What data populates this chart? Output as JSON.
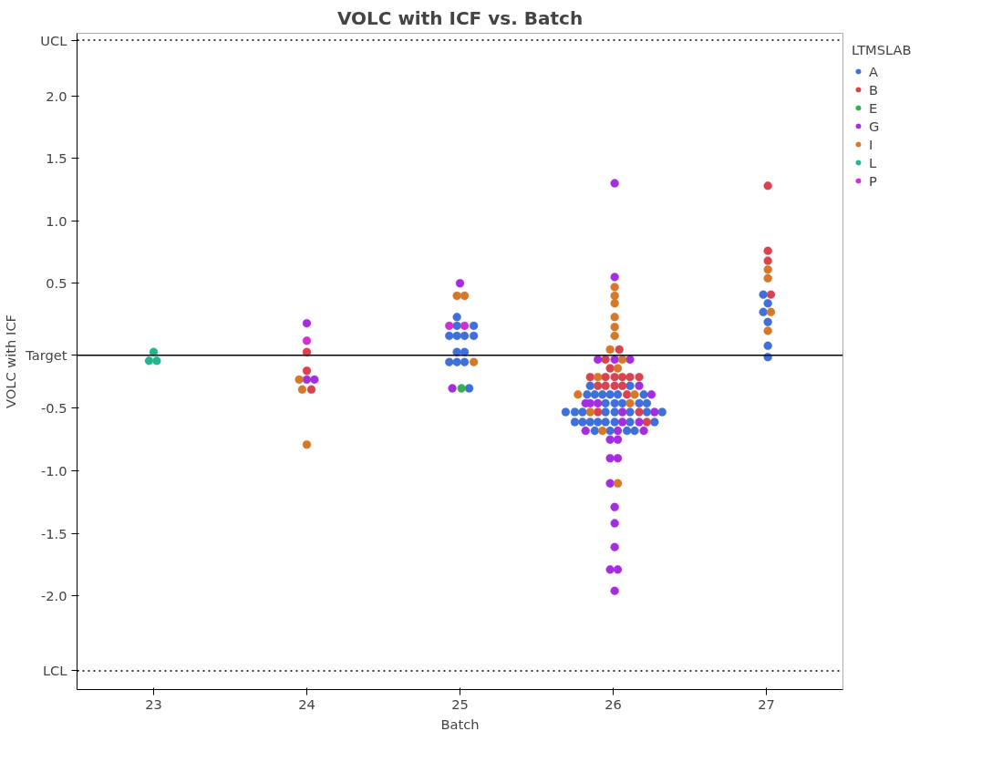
{
  "chart_data": {
    "type": "scatter",
    "title": "VOLC with ICF vs. Batch",
    "xlabel": "Batch",
    "ylabel": "VOLC with ICF",
    "legend_title": "LTMSLAB",
    "xlim": [
      22.5,
      27.5
    ],
    "xticks": [
      23,
      24,
      25,
      26,
      27
    ],
    "ylim": [
      -2.75,
      2.5
    ],
    "yticks": [
      {
        "value": 2.0,
        "label": "2.0"
      },
      {
        "value": 1.5,
        "label": "1.5"
      },
      {
        "value": 1.0,
        "label": "1.0"
      },
      {
        "value": 0.5,
        "label": "0.5"
      },
      {
        "value": -0.5,
        "label": "-0.5"
      },
      {
        "value": -1.0,
        "label": "-1.0"
      },
      {
        "value": -1.5,
        "label": "-1.5"
      },
      {
        "value": -2.0,
        "label": "-2.0"
      }
    ],
    "ref_lines": [
      {
        "axis": "y",
        "value": 2.445,
        "label": "UCL",
        "line_style": "dotted",
        "color": "#000000"
      },
      {
        "axis": "y",
        "value": -0.075,
        "label": "Target",
        "line_style": "solid",
        "color": "#000000"
      },
      {
        "axis": "y",
        "value": -2.6,
        "label": "LCL",
        "line_style": "dotted",
        "color": "#000000"
      }
    ],
    "grid": false,
    "legend": "right",
    "marker": "circle",
    "series": [
      {
        "name": "A",
        "color": "#3f6fd8",
        "x": [
          24.98,
          24.98,
          25.09,
          24.93,
          24.98,
          25.03,
          25.09,
          24.98,
          25.03,
          24.93,
          24.98,
          25.03,
          25.06,
          26.98,
          27.01,
          26.98,
          27.01,
          27.01,
          27.01,
          25.85,
          26.11,
          25.83,
          25.88,
          25.93,
          25.98,
          26.03,
          26.2,
          25.95,
          26.01,
          26.06,
          26.17,
          26.22,
          25.69,
          25.75,
          25.8,
          25.95,
          26.01,
          26.11,
          26.22,
          26.32,
          25.75,
          25.8,
          25.85,
          25.9,
          25.95,
          26.01,
          26.11,
          26.27,
          25.88,
          25.98,
          26.09,
          26.14
        ],
        "values": [
          0.23,
          0.16,
          0.16,
          0.08,
          0.08,
          0.08,
          0.08,
          -0.05,
          -0.05,
          -0.13,
          -0.13,
          -0.13,
          -0.34,
          0.41,
          0.34,
          0.27,
          0.19,
          0.0,
          -0.09,
          -0.32,
          -0.32,
          -0.39,
          -0.39,
          -0.39,
          -0.39,
          -0.39,
          -0.39,
          -0.46,
          -0.46,
          -0.46,
          -0.46,
          -0.46,
          -0.53,
          -0.53,
          -0.53,
          -0.53,
          -0.53,
          -0.53,
          -0.53,
          -0.53,
          -0.61,
          -0.61,
          -0.61,
          -0.61,
          -0.61,
          -0.61,
          -0.61,
          -0.61,
          -0.68,
          -0.68,
          -0.68,
          -0.68
        ]
      },
      {
        "name": "B",
        "color": "#d9434f",
        "x": [
          24.0,
          24.0,
          24.03,
          27.01,
          27.01,
          27.01,
          27.03,
          26.04,
          25.95,
          25.98,
          25.85,
          25.95,
          26.01,
          26.06,
          26.11,
          26.17,
          25.9,
          25.95,
          26.01,
          26.06,
          26.09,
          25.9,
          26.17,
          26.22
        ],
        "values": [
          -0.05,
          -0.2,
          -0.35,
          1.28,
          0.76,
          0.68,
          0.41,
          -0.03,
          -0.11,
          -0.18,
          -0.25,
          -0.25,
          -0.25,
          -0.25,
          -0.25,
          -0.25,
          -0.32,
          -0.32,
          -0.32,
          -0.32,
          -0.39,
          -0.53,
          -0.53,
          -0.61
        ]
      },
      {
        "name": "E",
        "color": "#37b04a",
        "x": [
          25.01
        ],
        "values": [
          -0.34
        ]
      },
      {
        "name": "G",
        "color": "#a32ee0",
        "x": [
          24.0,
          24.0,
          24.05,
          25.0,
          24.95,
          26.01,
          26.01,
          25.9,
          26.01,
          26.11,
          26.17,
          26.25,
          25.82,
          25.85,
          25.9,
          26.06,
          26.27,
          26.06,
          26.17,
          25.82,
          26.03,
          26.2,
          25.98,
          26.03,
          25.98,
          26.03,
          25.98,
          26.01,
          26.01,
          26.01,
          25.98,
          26.03,
          26.01
        ],
        "values": [
          0.18,
          -0.27,
          -0.27,
          0.5,
          -0.34,
          1.3,
          0.55,
          -0.11,
          -0.11,
          -0.11,
          -0.32,
          -0.39,
          -0.46,
          -0.46,
          -0.46,
          -0.53,
          -0.53,
          -0.61,
          -0.61,
          -0.68,
          -0.68,
          -0.68,
          -0.75,
          -0.75,
          -0.9,
          -0.9,
          -1.1,
          -1.29,
          -1.42,
          -1.61,
          -1.79,
          -1.79,
          -1.96
        ]
      },
      {
        "name": "I",
        "color": "#d5782a",
        "x": [
          23.95,
          23.97,
          24.0,
          24.98,
          25.03,
          25.09,
          27.01,
          27.01,
          27.03,
          27.01,
          26.01,
          26.01,
          26.01,
          26.01,
          26.01,
          26.01,
          25.98,
          26.06,
          26.03,
          25.9,
          25.77,
          26.14,
          26.11,
          25.85,
          25.93,
          26.03
        ],
        "values": [
          -0.27,
          -0.35,
          -0.79,
          0.4,
          0.4,
          -0.13,
          0.61,
          0.54,
          0.27,
          0.12,
          0.47,
          0.4,
          0.34,
          0.23,
          0.15,
          0.08,
          -0.03,
          -0.11,
          -0.18,
          -0.25,
          -0.39,
          -0.39,
          -0.46,
          -0.53,
          -0.68,
          -1.1
        ]
      },
      {
        "name": "L",
        "color": "#22b58f",
        "x": [
          23.0,
          22.97,
          23.02
        ],
        "values": [
          -0.05,
          -0.12,
          -0.12
        ]
      },
      {
        "name": "P",
        "color": "#d22fd2",
        "x": [
          24.0,
          24.93,
          25.03
        ],
        "values": [
          0.04,
          0.16,
          0.16
        ]
      }
    ]
  }
}
